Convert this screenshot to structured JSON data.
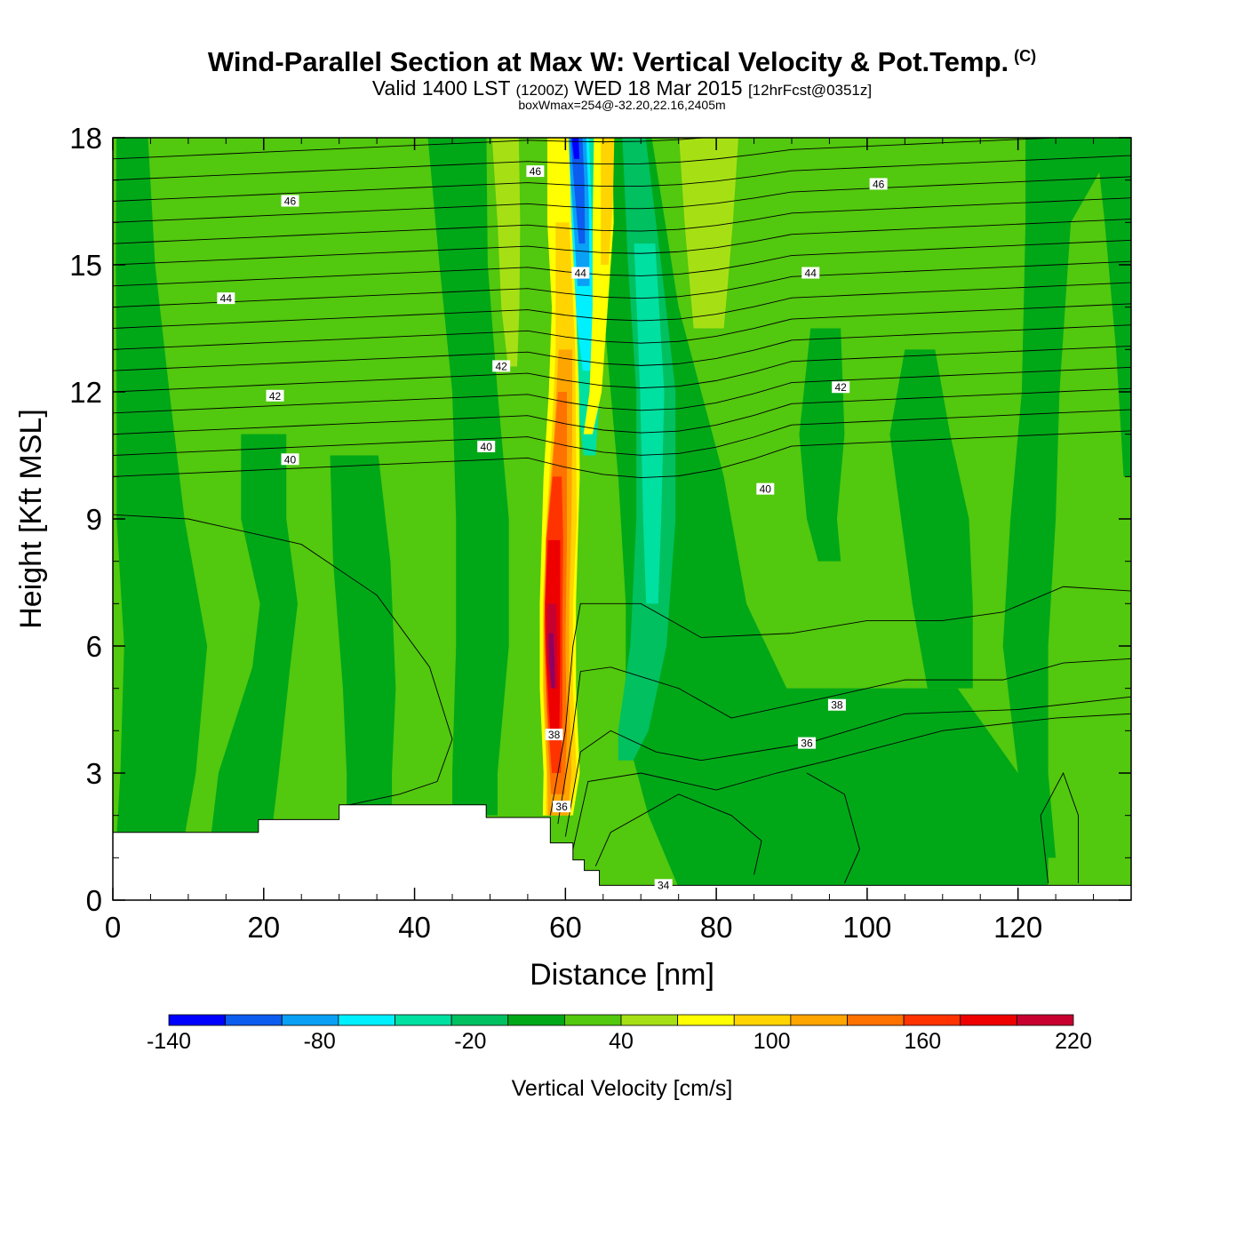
{
  "title": {
    "main": "Wind-Parallel Section at Max W: Vertical Velocity & Pot.Temp.",
    "copyright": "(C)",
    "valid_prefix": "Valid 1400 LST",
    "valid_utc": "(1200Z)",
    "valid_date": "WED 18 Mar 2015",
    "forecast": "[12hrFcst@0351z]",
    "box_info": "boxWmax=254@-32.20,22.16,2405m"
  },
  "chart_data": {
    "type": "heatmap",
    "title": "Wind-Parallel Section at Max W: Vertical Velocity & Pot.Temp.",
    "xlabel": "Distance [nm]",
    "ylabel": "Height [Kft MSL]",
    "xlim": [
      0,
      135
    ],
    "ylim": [
      0,
      18
    ],
    "x_ticks": [
      "0",
      "20",
      "40",
      "60",
      "80",
      "100",
      "120"
    ],
    "y_ticks": [
      "0",
      "3",
      "6",
      "9",
      "12",
      "15",
      "18"
    ],
    "colorbar": {
      "title": "Vertical Velocity [cm/s]",
      "levels": [
        -160,
        -140,
        -120,
        -100,
        -80,
        -60,
        -40,
        -20,
        0,
        20,
        40,
        60,
        80,
        100,
        120,
        140,
        160,
        180,
        200,
        220
      ],
      "tick_labels": [
        "-140",
        "-80",
        "-20",
        "40",
        "100",
        "160",
        "220"
      ],
      "colors": [
        "#0000ff",
        "#0d5cf0",
        "#0aa0f5",
        "#00f0ff",
        "#00e0a0",
        "#00c060",
        "#00a818",
        "#52c80e",
        "#a6e014",
        "#ffff00",
        "#ffd400",
        "#ffa500",
        "#ff7200",
        "#ff3300",
        "#ee0000",
        "#c80030",
        "#900060"
      ]
    },
    "background_w_level": "0 to 20",
    "w_features": [
      {
        "x": 62,
        "y_range": [
          10,
          18
        ],
        "w": -140,
        "desc": "downdraft core"
      },
      {
        "x": 59,
        "y_range": [
          2,
          10
        ],
        "w": 200,
        "desc": "updraft core"
      },
      {
        "x": 71,
        "y_range": [
          3,
          13
        ],
        "w": -60
      }
    ],
    "theta_contours": [
      {
        "label": "34",
        "x": 73,
        "y": 0.35
      },
      {
        "label": "36",
        "x": 59.5,
        "y": 2.2
      },
      {
        "label": "36",
        "x": 92,
        "y": 3.7
      },
      {
        "label": "38",
        "x": 58.5,
        "y": 3.9
      },
      {
        "label": "38",
        "x": 96,
        "y": 4.6
      },
      {
        "label": "40",
        "x": 23.5,
        "y": 10.4
      },
      {
        "label": "40",
        "x": 49.5,
        "y": 10.7
      },
      {
        "label": "40",
        "x": 86.5,
        "y": 9.7
      },
      {
        "label": "42",
        "x": 21.5,
        "y": 11.9
      },
      {
        "label": "42",
        "x": 51.5,
        "y": 12.6
      },
      {
        "label": "42",
        "x": 96.5,
        "y": 12.1
      },
      {
        "label": "44",
        "x": 15,
        "y": 14.2
      },
      {
        "label": "44",
        "x": 62,
        "y": 14.8
      },
      {
        "label": "44",
        "x": 92.5,
        "y": 14.8
      },
      {
        "label": "46",
        "x": 23.5,
        "y": 16.5
      },
      {
        "label": "46",
        "x": 56,
        "y": 17.2
      },
      {
        "label": "46",
        "x": 101.5,
        "y": 16.9
      }
    ],
    "terrain": [
      {
        "x": 0,
        "h": 1.6
      },
      {
        "x": 19.3,
        "h": 1.9
      },
      {
        "x": 30,
        "h": 2.25
      },
      {
        "x": 49.5,
        "h": 1.95
      },
      {
        "x": 58,
        "h": 1.35
      },
      {
        "x": 61,
        "h": 0.95
      },
      {
        "x": 62.5,
        "h": 0.7
      },
      {
        "x": 64.5,
        "h": 0.35
      },
      {
        "x": 135,
        "h": 0.35
      }
    ]
  }
}
